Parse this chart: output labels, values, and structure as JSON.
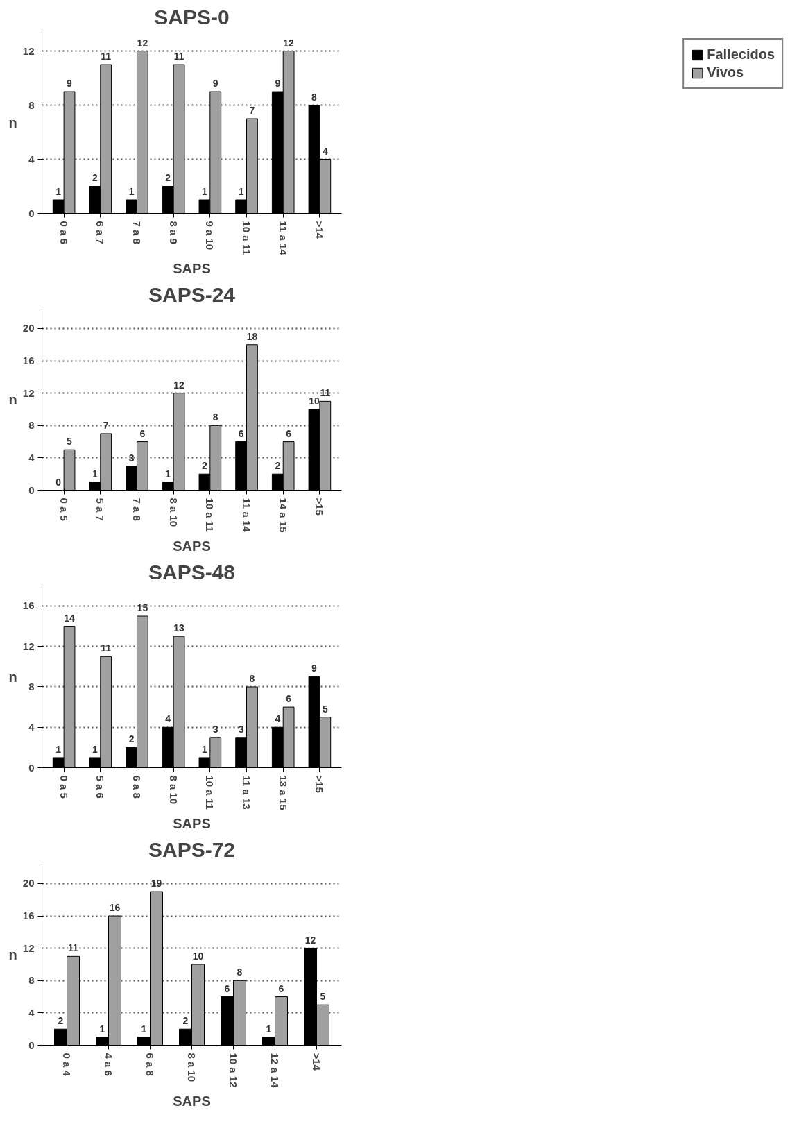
{
  "chart_data": [
    {
      "type": "bar",
      "title": "SAPS-0",
      "xlabel": "SAPS",
      "ylabel": "n",
      "categories": [
        "0 a 6",
        "6 a 7",
        "7 a 8",
        "8 a 9",
        "9 a 10",
        "10 a 11",
        "11 a 14",
        ">14"
      ],
      "series": [
        {
          "name": "Fallecidos",
          "color": "#000000",
          "values": [
            1,
            2,
            1,
            2,
            1,
            1,
            9,
            8
          ]
        },
        {
          "name": "Vivos",
          "color": "#a0a0a0",
          "values": [
            9,
            11,
            12,
            11,
            9,
            7,
            12,
            4
          ]
        }
      ],
      "ylim": [
        0,
        12
      ],
      "yticks": [
        0,
        4,
        8,
        12
      ],
      "grid": "y",
      "legend": "right",
      "data_labels": true
    },
    {
      "type": "bar",
      "title": "SAPS-24",
      "xlabel": "SAPS",
      "ylabel": "n",
      "categories": [
        "0 a 5",
        "5 a 7",
        "7 a 8",
        "8 a 10",
        "10 a 11",
        "11 a 14",
        "14 a 15",
        ">15"
      ],
      "series": [
        {
          "color": "#000000",
          "values": [
            0,
            1,
            3,
            1,
            2,
            6,
            2,
            10
          ]
        },
        {
          "color": "#a0a0a0",
          "values": [
            5,
            7,
            6,
            12,
            8,
            18,
            6,
            11
          ]
        }
      ],
      "ylim": [
        0,
        20
      ],
      "yticks": [
        0,
        4,
        8,
        12,
        16,
        20
      ],
      "grid": "y",
      "data_labels": true
    },
    {
      "type": "bar",
      "title": "SAPS-48",
      "xlabel": "SAPS",
      "ylabel": "n",
      "categories": [
        "0 a 5",
        "5 a 6",
        "6 a 8",
        "8 a 10",
        "10 a 11",
        "11 a 13",
        "13 a 15",
        ">15"
      ],
      "series": [
        {
          "color": "#000000",
          "values": [
            1,
            1,
            2,
            4,
            1,
            3,
            4,
            9
          ]
        },
        {
          "color": "#a0a0a0",
          "values": [
            14,
            11,
            15,
            13,
            3,
            8,
            6,
            5
          ]
        }
      ],
      "ylim": [
        0,
        16
      ],
      "yticks": [
        0,
        4,
        8,
        12,
        16
      ],
      "grid": "y",
      "data_labels": true
    },
    {
      "type": "bar",
      "title": "SAPS-72",
      "xlabel": "SAPS",
      "ylabel": "n",
      "categories": [
        "0 a 4",
        "4 a 6",
        "6 a 8",
        "8 a 10",
        "10 a 12",
        "12 a 14",
        ">14"
      ],
      "series": [
        {
          "color": "#000000",
          "values": [
            2,
            1,
            1,
            2,
            6,
            1,
            12
          ]
        },
        {
          "color": "#a0a0a0",
          "values": [
            11,
            16,
            19,
            10,
            8,
            6,
            5
          ]
        }
      ],
      "ylim": [
        0,
        20
      ],
      "yticks": [
        0,
        4,
        8,
        12,
        16,
        20
      ],
      "grid": "y",
      "data_labels": true
    }
  ]
}
